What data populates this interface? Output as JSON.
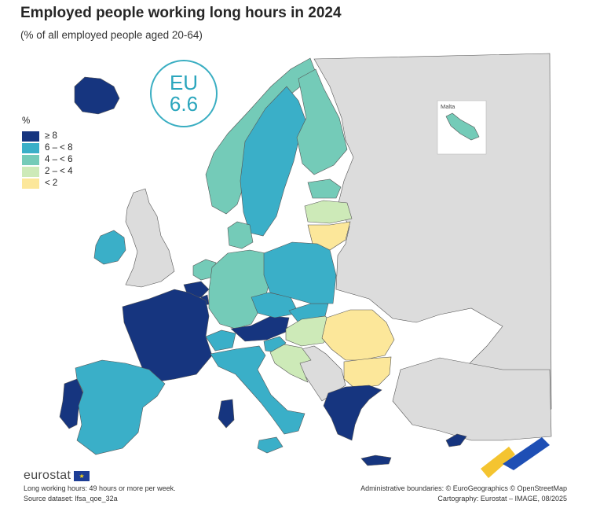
{
  "title": "Employed people working long hours in 2024",
  "subtitle": "(% of all employed people aged 20-64)",
  "eu_badge": {
    "line1": "EU",
    "line2": "6.6"
  },
  "legend": {
    "title": "%",
    "classes": [
      {
        "label": "≥ 8",
        "color": "#16357f"
      },
      {
        "label": "6 – < 8",
        "color": "#3aafc8"
      },
      {
        "label": "4 – < 6",
        "color": "#74cbb8"
      },
      {
        "label": "2 – < 4",
        "color": "#cdeab8"
      },
      {
        "label": "< 2",
        "color": "#fce79a"
      }
    ]
  },
  "colors": {
    "no_data": "#dcdcdc",
    "sea": "#ffffff",
    "border": "#555555"
  },
  "inset_label": "Malta",
  "map_data": {
    "regions": [
      {
        "name": "Iceland",
        "class": 0
      },
      {
        "name": "Ireland",
        "class": 1
      },
      {
        "name": "France",
        "class": 0
      },
      {
        "name": "Belgium",
        "class": 0
      },
      {
        "name": "Luxembourg",
        "class": 0
      },
      {
        "name": "Austria",
        "class": 0
      },
      {
        "name": "Portugal",
        "class": 0
      },
      {
        "name": "Greece",
        "class": 0
      },
      {
        "name": "Cyprus",
        "class": 0
      },
      {
        "name": "Sardinia",
        "class": 0
      },
      {
        "name": "Sweden",
        "class": 1
      },
      {
        "name": "Spain",
        "class": 1
      },
      {
        "name": "Italy",
        "class": 1
      },
      {
        "name": "Switzerland",
        "class": 1
      },
      {
        "name": "Poland",
        "class": 1
      },
      {
        "name": "Czechia",
        "class": 1
      },
      {
        "name": "Slovakia",
        "class": 1
      },
      {
        "name": "Slovenia",
        "class": 1
      },
      {
        "name": "Norway",
        "class": 2
      },
      {
        "name": "Finland",
        "class": 2
      },
      {
        "name": "Germany",
        "class": 2
      },
      {
        "name": "Netherlands",
        "class": 2
      },
      {
        "name": "Denmark",
        "class": 2
      },
      {
        "name": "Estonia",
        "class": 2
      },
      {
        "name": "Malta",
        "class": 2
      },
      {
        "name": "Latvia",
        "class": 3
      },
      {
        "name": "Hungary",
        "class": 3
      },
      {
        "name": "Croatia",
        "class": 3
      },
      {
        "name": "Lithuania",
        "class": 4
      },
      {
        "name": "Romania",
        "class": 4
      },
      {
        "name": "Bulgaria",
        "class": 4
      }
    ]
  },
  "brand": "eurostat",
  "notes": [
    "Long working hours: 49 hours or more per week.",
    "Source dataset: lfsa_qoe_32a"
  ],
  "credits": [
    "Administrative boundaries: © EuroGeographics © OpenStreetMap",
    "Cartography: Eurostat – IMAGE, 08/2025"
  ]
}
